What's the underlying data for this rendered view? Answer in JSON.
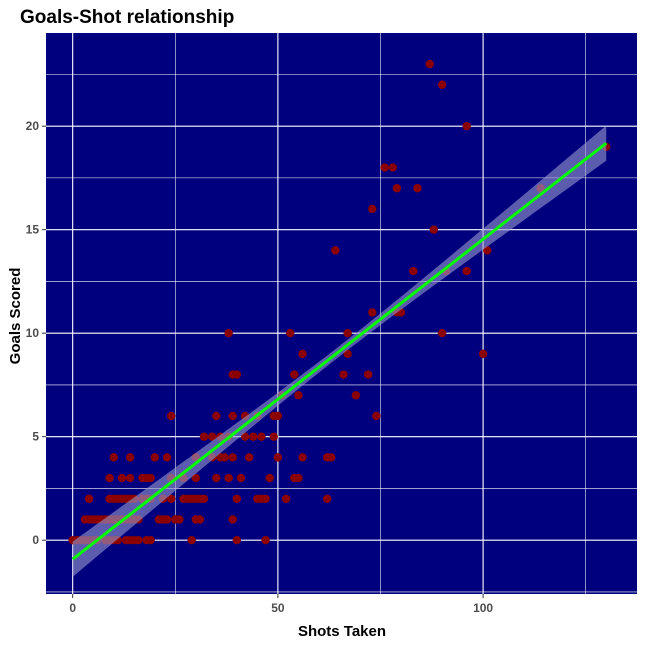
{
  "chart_data": {
    "type": "scatter",
    "title": "Goals-Shot relationship",
    "xlabel": "Shots Taken",
    "ylabel": "Goals Scored",
    "xlim": [
      -6.5,
      137.5
    ],
    "ylim": [
      -2.6,
      24.5
    ],
    "x_ticks": [
      0,
      50,
      100
    ],
    "y_ticks": [
      0,
      5,
      10,
      15,
      20
    ],
    "x_tick_labels": [
      "0",
      "50",
      "100"
    ],
    "y_tick_labels": [
      "0",
      "5",
      "10",
      "15",
      "20"
    ],
    "grid": true,
    "legend": "none",
    "colors": {
      "panel_background": "#00007F",
      "grid": "#FFFFFF",
      "points": "#8B0000",
      "regression_line": "#00FF00",
      "confidence_band": "#9A9ACF"
    },
    "points": [
      [
        0,
        0
      ],
      [
        1,
        0
      ],
      [
        2,
        0
      ],
      [
        3,
        0
      ],
      [
        4,
        0
      ],
      [
        5,
        0
      ],
      [
        6,
        0
      ],
      [
        8,
        0
      ],
      [
        9,
        0
      ],
      [
        10,
        0
      ],
      [
        11,
        0
      ],
      [
        13,
        0
      ],
      [
        14,
        0
      ],
      [
        15,
        0
      ],
      [
        16,
        0
      ],
      [
        18,
        0
      ],
      [
        19,
        0
      ],
      [
        29,
        0
      ],
      [
        40,
        0
      ],
      [
        47,
        0
      ],
      [
        3,
        1
      ],
      [
        4,
        1
      ],
      [
        5,
        1
      ],
      [
        6,
        1
      ],
      [
        7,
        1
      ],
      [
        8,
        1
      ],
      [
        9,
        1
      ],
      [
        10,
        1
      ],
      [
        11,
        1
      ],
      [
        12,
        1
      ],
      [
        13,
        1
      ],
      [
        14,
        1
      ],
      [
        15,
        1
      ],
      [
        16,
        1
      ],
      [
        21,
        1
      ],
      [
        22,
        1
      ],
      [
        23,
        1
      ],
      [
        25,
        1
      ],
      [
        26,
        1
      ],
      [
        30,
        1
      ],
      [
        31,
        1
      ],
      [
        39,
        1
      ],
      [
        4,
        2
      ],
      [
        9,
        2
      ],
      [
        10,
        2
      ],
      [
        11,
        2
      ],
      [
        12,
        2
      ],
      [
        13,
        2
      ],
      [
        14,
        2
      ],
      [
        15,
        2
      ],
      [
        17,
        2
      ],
      [
        18,
        2
      ],
      [
        19,
        2
      ],
      [
        22,
        2
      ],
      [
        24,
        2
      ],
      [
        27,
        2
      ],
      [
        28,
        2
      ],
      [
        29,
        2
      ],
      [
        30,
        2
      ],
      [
        31,
        2
      ],
      [
        32,
        2
      ],
      [
        40,
        2
      ],
      [
        45,
        2
      ],
      [
        46,
        2
      ],
      [
        47,
        2
      ],
      [
        52,
        2
      ],
      [
        62,
        2
      ],
      [
        9,
        3
      ],
      [
        12,
        3
      ],
      [
        14,
        3
      ],
      [
        17,
        3
      ],
      [
        18,
        3
      ],
      [
        19,
        3
      ],
      [
        24,
        3
      ],
      [
        27,
        3
      ],
      [
        30,
        3
      ],
      [
        35,
        3
      ],
      [
        38,
        3
      ],
      [
        41,
        3
      ],
      [
        48,
        3
      ],
      [
        54,
        3
      ],
      [
        55,
        3
      ],
      [
        10,
        4
      ],
      [
        14,
        4
      ],
      [
        20,
        4
      ],
      [
        23,
        4
      ],
      [
        30,
        4
      ],
      [
        34,
        4
      ],
      [
        36,
        4
      ],
      [
        37,
        4
      ],
      [
        39,
        4
      ],
      [
        43,
        4
      ],
      [
        50,
        4
      ],
      [
        56,
        4
      ],
      [
        62,
        4
      ],
      [
        63,
        4
      ],
      [
        32,
        5
      ],
      [
        34,
        5
      ],
      [
        36,
        5
      ],
      [
        38,
        5
      ],
      [
        42,
        5
      ],
      [
        44,
        5
      ],
      [
        46,
        5
      ],
      [
        49,
        5
      ],
      [
        24,
        6
      ],
      [
        35,
        6
      ],
      [
        39,
        6
      ],
      [
        42,
        6
      ],
      [
        45,
        6
      ],
      [
        49,
        6
      ],
      [
        50,
        6
      ],
      [
        74,
        6
      ],
      [
        51,
        7
      ],
      [
        55,
        7
      ],
      [
        69,
        7
      ],
      [
        39,
        8
      ],
      [
        40,
        8
      ],
      [
        54,
        8
      ],
      [
        66,
        8
      ],
      [
        72,
        8
      ],
      [
        56,
        9
      ],
      [
        67,
        9
      ],
      [
        100,
        9
      ],
      [
        38,
        10
      ],
      [
        53,
        10
      ],
      [
        67,
        10
      ],
      [
        90,
        10
      ],
      [
        73,
        11
      ],
      [
        79,
        11
      ],
      [
        80,
        11
      ],
      [
        83,
        13
      ],
      [
        91,
        13
      ],
      [
        96,
        13
      ],
      [
        64,
        14
      ],
      [
        101,
        14
      ],
      [
        88,
        15
      ],
      [
        73,
        16
      ],
      [
        79,
        17
      ],
      [
        84,
        17
      ],
      [
        114,
        17
      ],
      [
        76,
        18
      ],
      [
        78,
        18
      ],
      [
        130,
        19
      ],
      [
        96,
        20
      ],
      [
        90,
        22
      ],
      [
        87,
        23
      ]
    ],
    "regression": {
      "x_range": [
        0,
        130
      ],
      "intercept": -0.92,
      "slope": 0.1546,
      "ci_half_width_at_ends": 0.85,
      "ci_half_width_at_center": 0.25
    }
  }
}
